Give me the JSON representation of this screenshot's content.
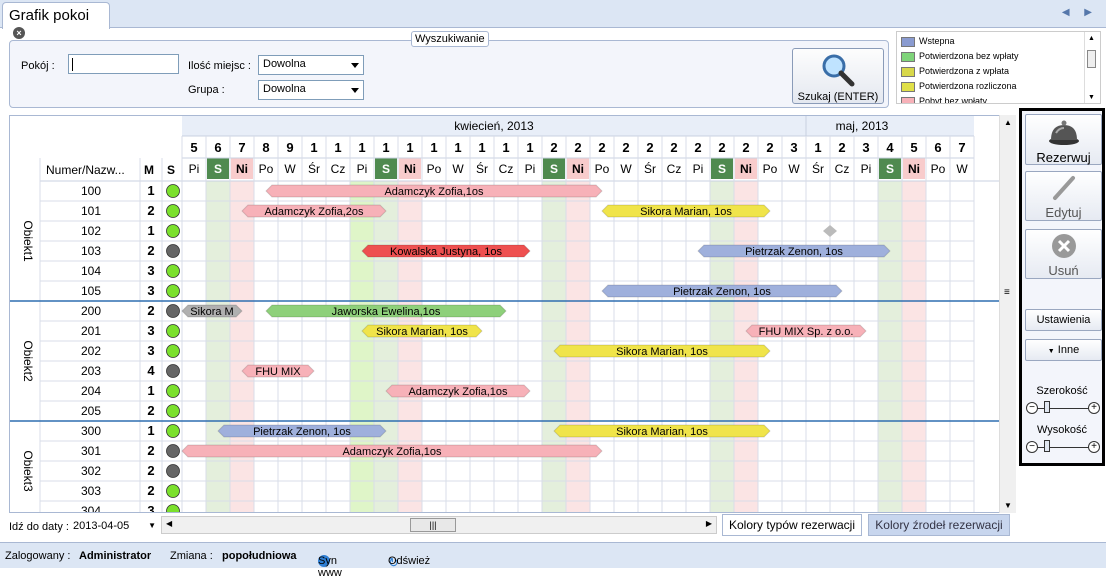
{
  "tab": {
    "title": "Grafik pokoi",
    "close": "×"
  },
  "search": {
    "legend": "Wyszukiwanie",
    "room_label": "Pokój :",
    "room_value": "",
    "seats_label": "Ilość miejsc :",
    "seats_value": "Dowolna",
    "group_label": "Grupa :",
    "group_value": "Dowolna",
    "button": "Szukaj (ENTER)"
  },
  "status_legend": [
    {
      "label": "Wstepna",
      "color": "#8a9bd0"
    },
    {
      "label": "Potwierdzona bez wpłaty",
      "color": "#7fd47a"
    },
    {
      "label": "Potwierdzona z wpłata",
      "color": "#d8d84a"
    },
    {
      "label": "Potwierdzona rozliczona",
      "color": "#e0e048"
    },
    {
      "label": "Pobyt bez wpłaty",
      "color": "#f7b1b8"
    }
  ],
  "grid": {
    "col_header_name": "Numer/Nazw...",
    "col_header_m": "M",
    "col_header_s": "S",
    "months": [
      {
        "label": "kwiecień, 2013"
      },
      {
        "label": "maj, 2013"
      }
    ],
    "days": [
      {
        "num": "5",
        "dow": "Pi"
      },
      {
        "num": "6",
        "dow": "S"
      },
      {
        "num": "7",
        "dow": "Ni"
      },
      {
        "num": "8",
        "dow": "Po"
      },
      {
        "num": "9",
        "dow": "W"
      },
      {
        "num": "1",
        "dow": "Śr"
      },
      {
        "num": "1",
        "dow": "Cz"
      },
      {
        "num": "1",
        "dow": "Pi"
      },
      {
        "num": "1",
        "dow": "S"
      },
      {
        "num": "1",
        "dow": "Ni"
      },
      {
        "num": "1",
        "dow": "Po"
      },
      {
        "num": "1",
        "dow": "W"
      },
      {
        "num": "1",
        "dow": "Śr"
      },
      {
        "num": "1",
        "dow": "Cz"
      },
      {
        "num": "1",
        "dow": "Pi"
      },
      {
        "num": "2",
        "dow": "S"
      },
      {
        "num": "2",
        "dow": "Ni"
      },
      {
        "num": "2",
        "dow": "Po"
      },
      {
        "num": "2",
        "dow": "W"
      },
      {
        "num": "2",
        "dow": "Śr"
      },
      {
        "num": "2",
        "dow": "Cz"
      },
      {
        "num": "2",
        "dow": "Pi"
      },
      {
        "num": "2",
        "dow": "S"
      },
      {
        "num": "2",
        "dow": "Ni"
      },
      {
        "num": "2",
        "dow": "Po"
      },
      {
        "num": "3",
        "dow": "W"
      },
      {
        "num": "1",
        "dow": "Śr"
      },
      {
        "num": "2",
        "dow": "Cz"
      },
      {
        "num": "3",
        "dow": "Pi"
      },
      {
        "num": "4",
        "dow": "S"
      },
      {
        "num": "5",
        "dow": "Ni"
      },
      {
        "num": "6",
        "dow": "Po"
      },
      {
        "num": "7",
        "dow": "W"
      }
    ],
    "groups": [
      {
        "name": "Obiekt1",
        "rooms": [
          {
            "num": "100",
            "m": "1",
            "s": "green"
          },
          {
            "num": "101",
            "m": "2",
            "s": "green"
          },
          {
            "num": "102",
            "m": "1",
            "s": "green"
          },
          {
            "num": "103",
            "m": "2",
            "s": "gray"
          },
          {
            "num": "104",
            "m": "3",
            "s": "green"
          },
          {
            "num": "105",
            "m": "3",
            "s": "green"
          }
        ]
      },
      {
        "name": "Obiekt2",
        "rooms": [
          {
            "num": "200",
            "m": "2",
            "s": "gray"
          },
          {
            "num": "201",
            "m": "3",
            "s": "green"
          },
          {
            "num": "202",
            "m": "3",
            "s": "green"
          },
          {
            "num": "203",
            "m": "4",
            "s": "gray"
          },
          {
            "num": "204",
            "m": "1",
            "s": "green"
          },
          {
            "num": "205",
            "m": "2",
            "s": "green"
          }
        ]
      },
      {
        "name": "Obiekt3",
        "rooms": [
          {
            "num": "300",
            "m": "1",
            "s": "green"
          },
          {
            "num": "301",
            "m": "2",
            "s": "gray"
          },
          {
            "num": "302",
            "m": "2",
            "s": "gray"
          },
          {
            "num": "303",
            "m": "2",
            "s": "green"
          },
          {
            "num": "304",
            "m": "3",
            "s": "green"
          }
        ]
      }
    ],
    "reservations": [
      {
        "row": 0,
        "start": 3.5,
        "end": 17.5,
        "label": "Adamczyk Zofia,1os",
        "color": "#f7b1b8"
      },
      {
        "row": 1,
        "start": 2.5,
        "end": 8.5,
        "label": "Adamczyk Zofia,2os",
        "color": "#f7b1b8"
      },
      {
        "row": 1,
        "start": 17.5,
        "end": 24.5,
        "label": "Sikora Marian, 1os",
        "color": "#f0e44a"
      },
      {
        "row": 3,
        "start": 7.5,
        "end": 14.5,
        "label": "Kowalska Justyna, 1os",
        "color": "#ee5050"
      },
      {
        "row": 3,
        "start": 21.5,
        "end": 29.5,
        "label": "Pietrzak Zenon, 1os",
        "color": "#9fb0dc"
      },
      {
        "row": 5,
        "start": 17.5,
        "end": 27.5,
        "label": "Pietrzak Zenon, 1os",
        "color": "#9fb0dc"
      },
      {
        "row": 6,
        "start": 0,
        "end": 2.5,
        "label": "Sikora M",
        "color": "#b0b0b0"
      },
      {
        "row": 6,
        "start": 3.5,
        "end": 13.5,
        "label": "Jaworska Ewelina,1os",
        "color": "#8ed07a"
      },
      {
        "row": 7,
        "start": 7.5,
        "end": 12.5,
        "label": "Sikora Marian, 1os",
        "color": "#f0e44a"
      },
      {
        "row": 7,
        "start": 23.5,
        "end": 28.5,
        "label": "FHU MIX Sp. z o.o.",
        "color": "#f7b1b8"
      },
      {
        "row": 8,
        "start": 15.5,
        "end": 24.5,
        "label": "Sikora Marian, 1os",
        "color": "#f0e44a"
      },
      {
        "row": 9,
        "start": 2.5,
        "end": 5.5,
        "label": "FHU MIX",
        "color": "#f7b1b8"
      },
      {
        "row": 10,
        "start": 8.5,
        "end": 14.5,
        "label": "Adamczyk Zofia,1os",
        "color": "#f7b1b8"
      },
      {
        "row": 12,
        "start": 1.5,
        "end": 8.5,
        "label": "Pietrzak Zenon, 1os",
        "color": "#9fb0dc"
      },
      {
        "row": 12,
        "start": 15.5,
        "end": 24.5,
        "label": "Sikora Marian, 1os",
        "color": "#f0e44a"
      },
      {
        "row": 13,
        "start": 0,
        "end": 17.5,
        "label": "Adamczyk Zofia,1os",
        "color": "#f7b1b8"
      }
    ]
  },
  "sidebar": {
    "reserve": "Rezerwuj",
    "edit": "Edytuj",
    "delete": "Usuń",
    "settings": "Ustawienia",
    "other": "Inne",
    "width": "Szerokość",
    "height": "Wysokość"
  },
  "datebar": {
    "label": "Idź do daty :",
    "value": "2013-04-05"
  },
  "bottom_tabs": {
    "type_colors": "Kolory typów rezerwacji",
    "source_colors": "Kolory źrodeł rezerwacji"
  },
  "status": {
    "logged_label": "Zalogowany :",
    "logged_value": "Administrator",
    "shift_label": "Zmiana :",
    "shift_value": "popołudniowa",
    "sync": "Syn www",
    "refresh": "Odśwież"
  }
}
